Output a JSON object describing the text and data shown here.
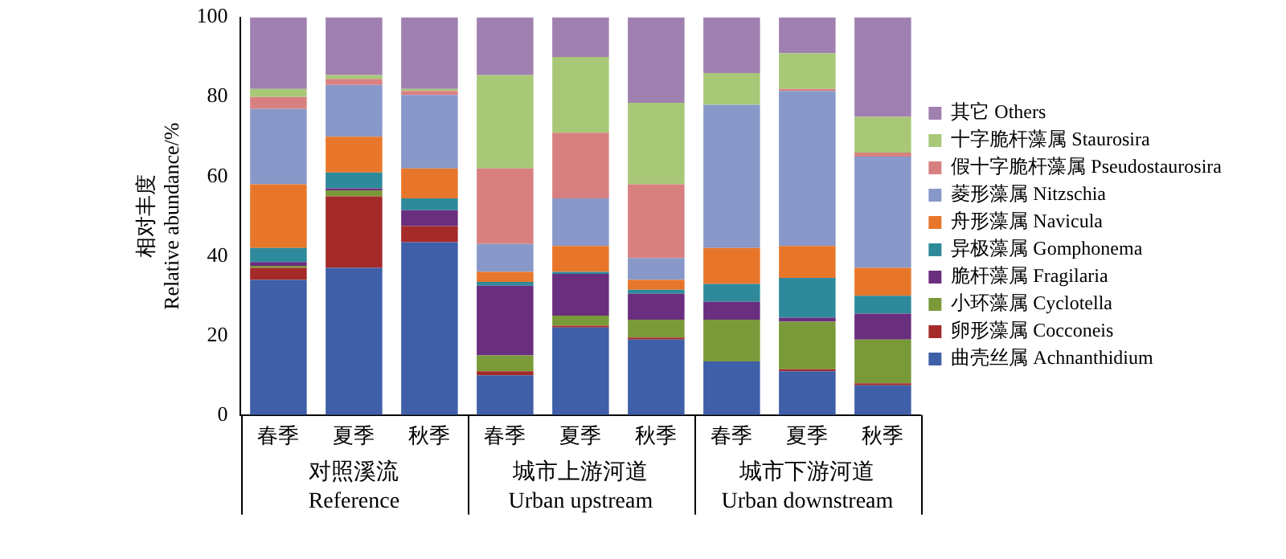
{
  "chart_data": {
    "type": "bar",
    "stacked": true,
    "ylabel": "相对丰度\nRelative abundance/%",
    "categories": [
      "春季",
      "夏季",
      "秋季",
      "春季",
      "夏季",
      "秋季",
      "春季",
      "夏季",
      "秋季"
    ],
    "annotations": [
      "对照溪流\nReference",
      "城市上游河道\nUrban upstream",
      "城市下游河道\nUrban downstream"
    ],
    "ylim": [
      0,
      100
    ],
    "yticks": [
      0,
      20,
      40,
      60,
      80,
      100
    ],
    "grid": false,
    "legend": "right",
    "series": [
      {
        "name": "曲壳丝属 Achnanthidium",
        "color": "#3f5fa8",
        "values": [
          34,
          37,
          43.5,
          10,
          22,
          19,
          13.5,
          11,
          7.5
        ]
      },
      {
        "name": "卵形藻属 Cocconeis",
        "color": "#a52a2a",
        "values": [
          3,
          18,
          4,
          1,
          0.5,
          0.5,
          0,
          0.5,
          0.5
        ]
      },
      {
        "name": "小环藻属 Cyclotella",
        "color": "#7a9a3a",
        "values": [
          0.5,
          1.5,
          0,
          4,
          2.5,
          4.5,
          10.5,
          12,
          11
        ]
      },
      {
        "name": "脆杆藻属 Fragilaria",
        "color": "#6a2e7f",
        "values": [
          1,
          0.5,
          4,
          17.5,
          10.5,
          6.5,
          4.5,
          1,
          6.5
        ]
      },
      {
        "name": "异极藻属 Gomphonema",
        "color": "#2e8a9a",
        "values": [
          3.5,
          4,
          3,
          1,
          0.5,
          1,
          4.5,
          10,
          4.5
        ]
      },
      {
        "name": "舟形藻属 Navicula",
        "color": "#e8762a",
        "values": [
          16,
          9,
          7.5,
          2.5,
          6.5,
          2.5,
          9,
          8,
          7
        ]
      },
      {
        "name": "菱形藻属 Nitzschia",
        "color": "#8898c8",
        "values": [
          19,
          13,
          18.5,
          7,
          12,
          5.5,
          36,
          39,
          28
        ]
      },
      {
        "name": "假十字脆杆藻属 Pseudostaurosira",
        "color": "#d88080",
        "values": [
          3,
          1.5,
          1,
          19,
          16.5,
          18.5,
          0,
          0.5,
          1
        ]
      },
      {
        "name": "十字脆杆藻属 Staurosira",
        "color": "#a8c878",
        "values": [
          2,
          1,
          0.5,
          23.5,
          19,
          20.5,
          8,
          9,
          9
        ]
      },
      {
        "name": "其它 Others",
        "color": "#a080b0",
        "values": [
          18,
          14.5,
          18,
          14.5,
          10,
          21.5,
          14,
          9,
          25
        ]
      }
    ]
  }
}
